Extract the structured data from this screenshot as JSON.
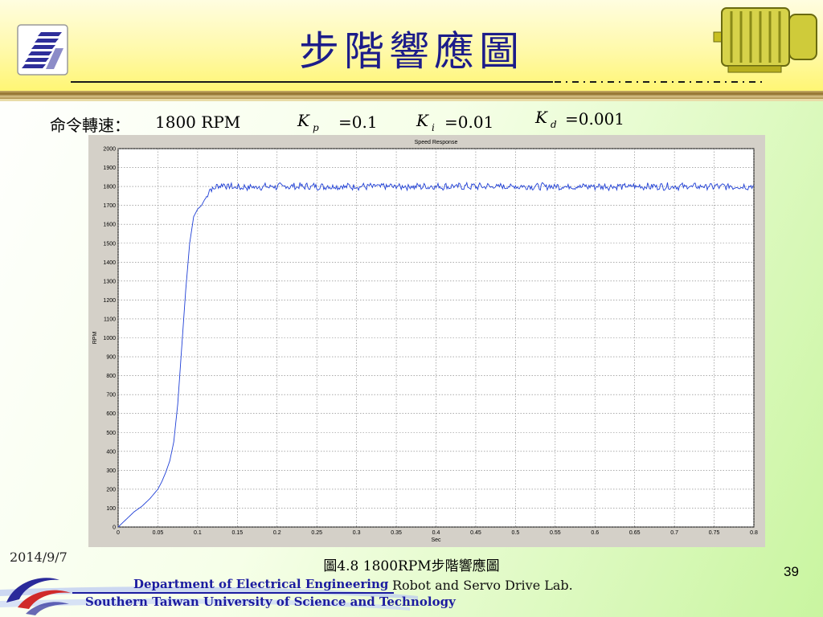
{
  "slide": {
    "title": "步階響應圖",
    "date": "2014/9/7",
    "page_number": "39",
    "caption": "圖4.8 1800RPM步階響應圖",
    "command_label": "命令轉速：",
    "command_value": "1800 RPM",
    "gains": [
      {
        "symbol": "K",
        "sub": "p",
        "value": "=0.1"
      },
      {
        "symbol": "K",
        "sub": "i",
        "value": "=0.01"
      },
      {
        "symbol": "K",
        "sub": "d",
        "value": "=0.001"
      }
    ],
    "department": "Department of Electrical Engineering",
    "university": "Southern Taiwan University of Science and Technology",
    "lab": "Robot and Servo Drive Lab."
  },
  "chart_data": {
    "type": "line",
    "title": "Speed Response",
    "xlabel": "Sec",
    "ylabel": "RPM",
    "xlim": [
      0,
      0.8
    ],
    "ylim": [
      0,
      2000
    ],
    "xticks": [
      "0",
      "0.05",
      "0.1",
      "0.15",
      "0.2",
      "0.25",
      "0.3",
      "0.35",
      "0.4",
      "0.45",
      "0.5",
      "0.55",
      "0.6",
      "0.65",
      "0.7",
      "0.75",
      "0.8"
    ],
    "yticks": [
      "0",
      "100",
      "200",
      "300",
      "400",
      "500",
      "600",
      "700",
      "800",
      "900",
      "1000",
      "1100",
      "1200",
      "1300",
      "1400",
      "1500",
      "1600",
      "1700",
      "1800",
      "1900",
      "2000"
    ],
    "grid": true,
    "series": [
      {
        "color": "#1f3fd6",
        "x": [
          0,
          0.01,
          0.02,
          0.03,
          0.04,
          0.05,
          0.055,
          0.06,
          0.065,
          0.07,
          0.075,
          0.08,
          0.085,
          0.09,
          0.095,
          0.1,
          0.105,
          0.11,
          0.115,
          0.12,
          0.125,
          0.13,
          0.14,
          0.15,
          0.2,
          0.25,
          0.3,
          0.35,
          0.4,
          0.45,
          0.5,
          0.55,
          0.6,
          0.65,
          0.7,
          0.75,
          0.8
        ],
        "y": [
          0,
          40,
          80,
          110,
          150,
          200,
          240,
          290,
          350,
          450,
          650,
          950,
          1250,
          1500,
          1640,
          1680,
          1700,
          1740,
          1780,
          1790,
          1800,
          1810,
          1800,
          1795,
          1800,
          1800,
          1800,
          1800,
          1800,
          1800,
          1800,
          1800,
          1800,
          1800,
          1800,
          1800,
          1800
        ]
      }
    ],
    "noise_amplitude_rpm": 20,
    "noise_start_sec": 0.11
  },
  "colors": {
    "title": "#1c1c8a",
    "footer_text": "#1c1ca0",
    "plot_line": "#1f3fd6",
    "figure_bg": "#d4d0c8"
  }
}
